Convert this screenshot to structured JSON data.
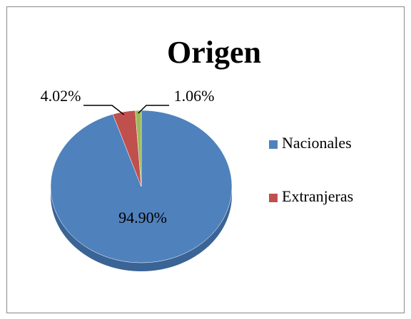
{
  "chart_data": {
    "type": "pie",
    "title": "Origen",
    "categories": [
      "Nacionales",
      "Extranjeras",
      null
    ],
    "values": [
      94.9,
      4.02,
      1.06
    ],
    "value_labels": [
      "94.90%",
      "4.02%",
      "1.06%"
    ],
    "colors": [
      "#4f81bd",
      "#c0504d",
      "#9bbb59"
    ],
    "legend": "right"
  }
}
